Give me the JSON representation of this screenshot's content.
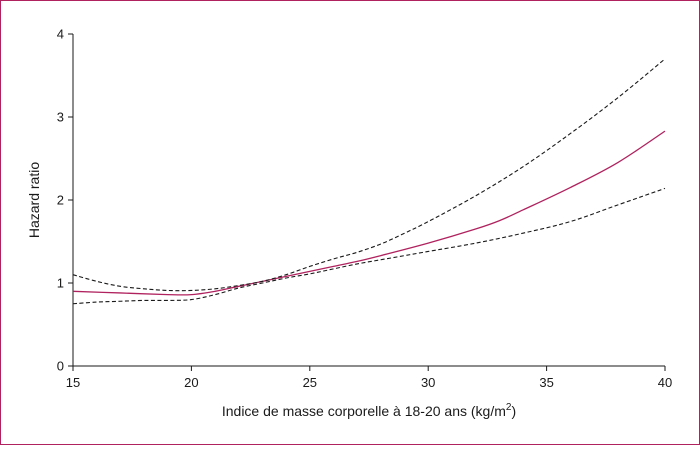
{
  "chart_data": {
    "type": "line",
    "title": "",
    "xlabel": "Indice de masse corporelle à 18-20 ans (kg/m",
    "xlabel_superscript": "2",
    "xlabel_close": ")",
    "ylabel": "Hazard ratio",
    "xlim": [
      15,
      40
    ],
    "ylim": [
      0,
      4
    ],
    "xticks": [
      15,
      20,
      25,
      30,
      35,
      40
    ],
    "yticks": [
      0,
      1,
      2,
      3,
      4
    ],
    "grid": false,
    "legend": "none",
    "series": [
      {
        "role": "estimate",
        "style": "solid",
        "color": "#b0225e",
        "x": [
          15,
          17,
          19,
          20,
          21,
          22,
          23,
          24,
          25,
          26,
          27,
          28,
          30,
          32,
          33,
          34,
          36,
          38,
          40
        ],
        "y": [
          0.9,
          0.88,
          0.86,
          0.86,
          0.9,
          0.96,
          1.02,
          1.08,
          1.14,
          1.2,
          1.26,
          1.33,
          1.48,
          1.65,
          1.75,
          1.88,
          2.15,
          2.45,
          2.83
        ]
      },
      {
        "role": "upper-ci",
        "style": "dashed",
        "color": "#1a1a1a",
        "x": [
          15,
          16,
          17,
          18,
          19,
          20,
          21,
          22,
          23,
          24,
          25,
          26,
          27,
          28,
          29,
          30,
          32,
          34,
          36,
          38,
          40
        ],
        "y": [
          1.1,
          1.02,
          0.96,
          0.93,
          0.91,
          0.91,
          0.93,
          0.97,
          1.02,
          1.1,
          1.2,
          1.29,
          1.37,
          1.47,
          1.6,
          1.74,
          2.05,
          2.4,
          2.8,
          3.23,
          3.7
        ]
      },
      {
        "role": "lower-ci",
        "style": "dashed",
        "color": "#1a1a1a",
        "x": [
          15,
          16,
          17,
          18,
          19,
          20,
          21,
          22,
          23,
          24,
          25,
          26,
          27,
          28,
          29,
          30,
          32,
          34,
          36,
          38,
          40
        ],
        "y": [
          0.75,
          0.77,
          0.78,
          0.79,
          0.79,
          0.8,
          0.86,
          0.94,
          1.0,
          1.06,
          1.11,
          1.17,
          1.23,
          1.28,
          1.33,
          1.38,
          1.48,
          1.6,
          1.74,
          1.94,
          2.14
        ]
      }
    ]
  }
}
